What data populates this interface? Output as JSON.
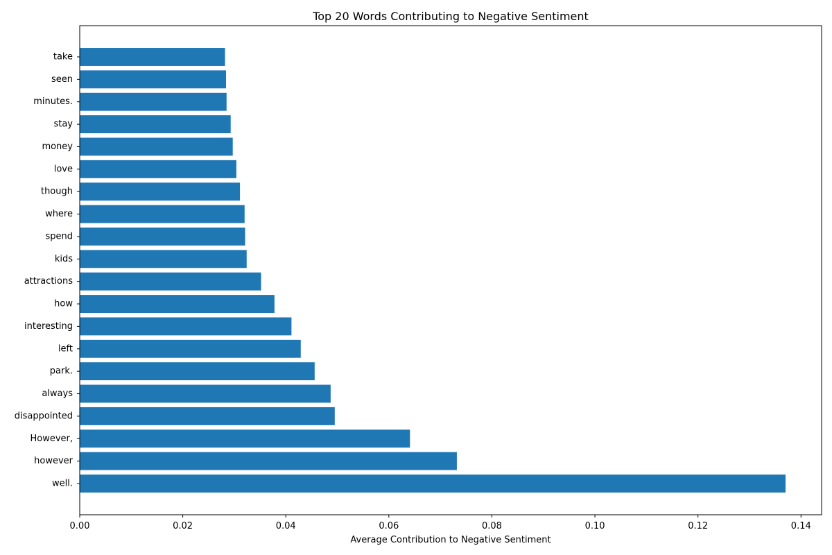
{
  "chart_data": {
    "type": "bar",
    "orientation": "horizontal",
    "title": "Top 20 Words Contributing to Negative Sentiment",
    "xlabel": "Average Contribution to Negative Sentiment",
    "ylabel": "",
    "categories": [
      "well.",
      "however",
      "However,",
      "disappointed",
      "always",
      "park.",
      "left",
      "interesting",
      "how",
      "attractions",
      "kids",
      "spend",
      "where",
      "though",
      "love",
      "money",
      "stay",
      "minutes.",
      "seen",
      "take"
    ],
    "values": [
      0.137,
      0.0732,
      0.0641,
      0.0495,
      0.0487,
      0.0456,
      0.0429,
      0.0411,
      0.0378,
      0.0352,
      0.0324,
      0.0321,
      0.032,
      0.0311,
      0.0304,
      0.0297,
      0.0293,
      0.0285,
      0.0284,
      0.0282
    ],
    "xlim": [
      0,
      0.144
    ],
    "xticks": [
      "0.00",
      "0.02",
      "0.04",
      "0.06",
      "0.08",
      "0.10",
      "0.12",
      "0.14"
    ],
    "xtick_values": [
      0,
      0.02,
      0.04,
      0.06,
      0.08,
      0.1,
      0.12,
      0.14
    ],
    "grid": false,
    "legend": "none",
    "bar_color": "#1f77b4"
  }
}
